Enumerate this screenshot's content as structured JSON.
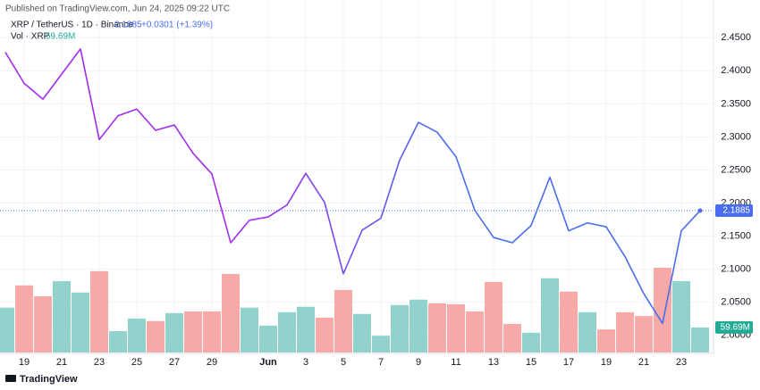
{
  "header": "Published on TradingView.com, Jun 24, 2025 09:22 UTC",
  "footer": "TradingView",
  "chart_data": {
    "type": "line",
    "symbol": "XRP / TetherUS · 1D · Binance",
    "change_label": "+0.0301 (+1.39%)",
    "categories": [
      null,
      "19",
      null,
      "21",
      null,
      "23",
      null,
      "25",
      null,
      "27",
      null,
      "29",
      null,
      null,
      "Jun",
      null,
      "3",
      null,
      "5",
      null,
      "7",
      null,
      "9",
      null,
      "11",
      null,
      "13",
      null,
      "15",
      null,
      "17",
      null,
      "19",
      null,
      "21",
      null,
      "23",
      null
    ],
    "values": [
      2.428,
      2.381,
      2.357,
      2.395,
      2.433,
      2.296,
      2.332,
      2.342,
      2.31,
      2.318,
      2.275,
      2.244,
      2.14,
      2.174,
      2.179,
      2.197,
      2.245,
      2.201,
      2.093,
      2.159,
      2.177,
      2.265,
      2.322,
      2.307,
      2.27,
      2.189,
      2.148,
      2.14,
      2.166,
      2.239,
      2.158,
      2.17,
      2.164,
      2.119,
      2.063,
      2.018,
      2.158,
      2.1885
    ],
    "line_colors": [
      "#a22cf0",
      "#4a6df0"
    ],
    "ylim": [
      1.974,
      2.48
    ],
    "yticks": [
      {
        "value": 2.0,
        "label": "2.0000"
      },
      {
        "value": 2.05,
        "label": "2.0500"
      },
      {
        "value": 2.1,
        "label": "2.1000"
      },
      {
        "value": 2.15,
        "label": "2.1500"
      },
      {
        "value": 2.2,
        "label": "2.2000"
      },
      {
        "value": 2.25,
        "label": "2.2500"
      },
      {
        "value": 2.3,
        "label": "2.3000"
      },
      {
        "value": 2.35,
        "label": "2.3500"
      },
      {
        "value": 2.4,
        "label": "2.4000"
      },
      {
        "value": 2.45,
        "label": "2.4500"
      }
    ],
    "grid": true,
    "volume": {
      "name": "Vol · XRP",
      "values": [
        107,
        160,
        134,
        170,
        143,
        194,
        51,
        81,
        75,
        94,
        98,
        98,
        187,
        107,
        64,
        96,
        109,
        83,
        149,
        92,
        40,
        113,
        126,
        117,
        115,
        98,
        168,
        68,
        47,
        177,
        145,
        96,
        55,
        96,
        87,
        202,
        170,
        59.69
      ],
      "value_labels": [
        null,
        null,
        null,
        null,
        null,
        null,
        null,
        null,
        null,
        null,
        null,
        null,
        null,
        null,
        null,
        null,
        null,
        null,
        null,
        null,
        null,
        null,
        null,
        null,
        null,
        null,
        null,
        null,
        null,
        null,
        null,
        null,
        null,
        null,
        null,
        null,
        null,
        "59.69M"
      ],
      "colors": [
        "#92d2cc",
        "#f7a9a7",
        "#f7a9a7",
        "#92d2cc",
        "#92d2cc",
        "#f7a9a7",
        "#92d2cc",
        "#92d2cc",
        "#f7a9a7",
        "#92d2cc",
        "#f7a9a7",
        "#f7a9a7",
        "#f7a9a7",
        "#92d2cc",
        "#92d2cc",
        "#92d2cc",
        "#92d2cc",
        "#f7a9a7",
        "#f7a9a7",
        "#92d2cc",
        "#92d2cc",
        "#92d2cc",
        "#92d2cc",
        "#f7a9a7",
        "#f7a9a7",
        "#f7a9a7",
        "#f7a9a7",
        "#f7a9a7",
        "#92d2cc",
        "#92d2cc",
        "#f7a9a7",
        "#92d2cc",
        "#f7a9a7",
        "#f7a9a7",
        "#f7a9a7",
        "#f7a9a7",
        "#92d2cc",
        "#92d2cc"
      ]
    }
  }
}
